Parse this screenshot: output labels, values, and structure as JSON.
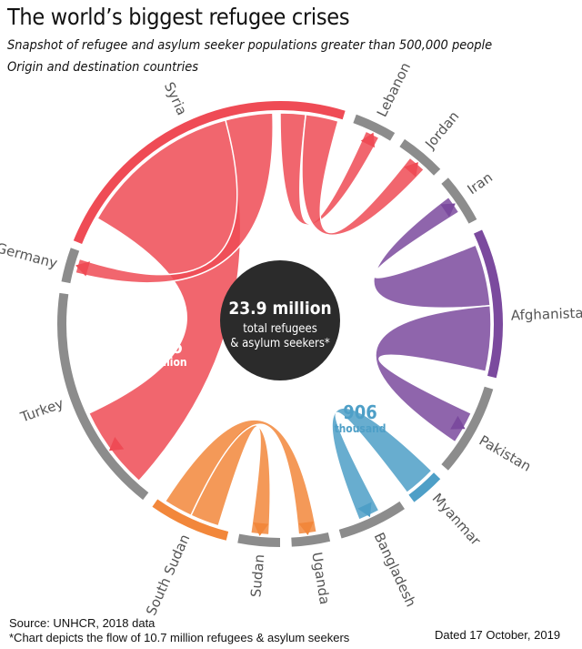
{
  "title": "The world’s biggest refugee crises",
  "subtitle": "Snapshot of refugee and asylum seeker populations greater than 500,000 people",
  "subtitle2": "Origin and destination countries",
  "center": {
    "value": "23.9 million",
    "line1": "total refugees",
    "line2": "& asylum seekers*"
  },
  "callouts": {
    "syria_turkey": {
      "value": "3.6",
      "unit": "million"
    },
    "myanmar_bangladesh": {
      "value": "906",
      "unit": "thousand"
    }
  },
  "colors": {
    "syria": "#ef4b55",
    "afghanistan": "#7b4a9e",
    "south_sudan": "#f2873b",
    "myanmar": "#4e9fc7",
    "destination": "#8c8c8c",
    "center": "#2b2b2b"
  },
  "chart_data": {
    "type": "chord",
    "countries": [
      {
        "name": "Syria",
        "role": "origin",
        "color": "#ef4b55"
      },
      {
        "name": "Lebanon",
        "role": "destination"
      },
      {
        "name": "Jordan",
        "role": "destination"
      },
      {
        "name": "Iran",
        "role": "destination"
      },
      {
        "name": "Afghanistan",
        "role": "origin",
        "color": "#7b4a9e"
      },
      {
        "name": "Pakistan",
        "role": "destination"
      },
      {
        "name": "Myanmar",
        "role": "origin",
        "color": "#4e9fc7"
      },
      {
        "name": "Bangladesh",
        "role": "destination"
      },
      {
        "name": "Uganda",
        "role": "destination"
      },
      {
        "name": "Sudan",
        "role": "destination"
      },
      {
        "name": "South Sudan",
        "role": "origin",
        "color": "#f2873b"
      },
      {
        "name": "Turkey",
        "role": "destination"
      },
      {
        "name": "Germany",
        "role": "destination"
      }
    ],
    "flows": [
      {
        "from": "Syria",
        "to": "Turkey",
        "label": "3.6 million"
      },
      {
        "from": "Syria",
        "to": "Germany"
      },
      {
        "from": "Syria",
        "to": "Lebanon"
      },
      {
        "from": "Syria",
        "to": "Jordan"
      },
      {
        "from": "Afghanistan",
        "to": "Iran"
      },
      {
        "from": "Afghanistan",
        "to": "Pakistan"
      },
      {
        "from": "Myanmar",
        "to": "Bangladesh",
        "label": "906 thousand"
      },
      {
        "from": "South Sudan",
        "to": "Sudan"
      },
      {
        "from": "South Sudan",
        "to": "Uganda"
      }
    ]
  },
  "footer": {
    "source": "Source: UNHCR, 2018 data",
    "note": "*Chart depicts the flow of 10.7 million refugees & asylum seekers",
    "dated": "Dated 17 October, 2019"
  }
}
